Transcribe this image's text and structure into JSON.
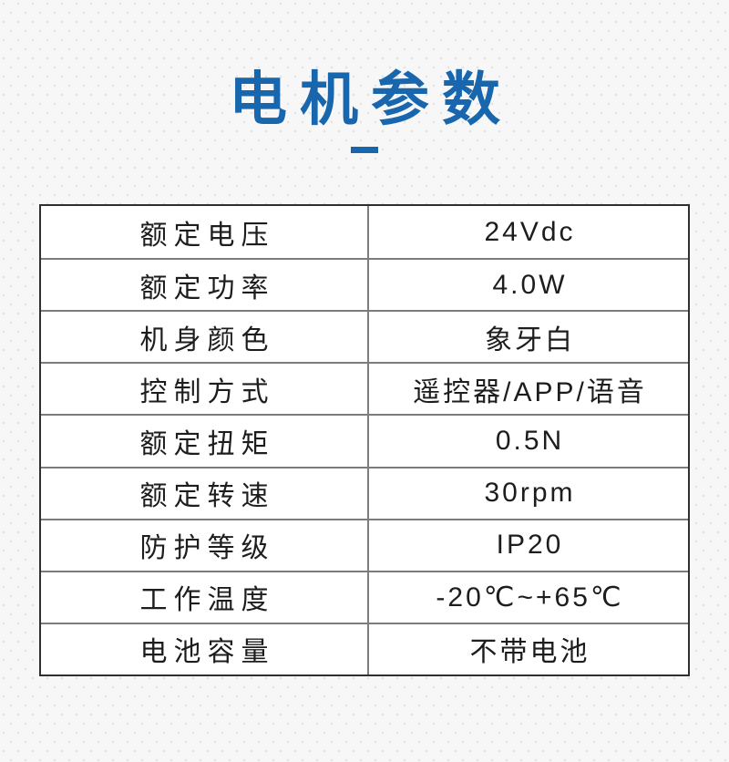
{
  "page": {
    "title": {
      "text": "电机参数",
      "accent_color": "#1766ae"
    },
    "background": {
      "base_color": "#f7f7f8",
      "dot_color": "#e4e4e6"
    }
  },
  "table": {
    "outer_border_color": "#2f2f2f",
    "inner_border_color": "#7c7c7c",
    "text_color": "#1d1d1d",
    "rows": [
      {
        "label": "额定电压",
        "value": "24Vdc"
      },
      {
        "label": "额定功率",
        "value": "4.0W"
      },
      {
        "label": "机身颜色",
        "value": "象牙白"
      },
      {
        "label": "控制方式",
        "value": "遥控器/APP/语音"
      },
      {
        "label": "额定扭矩",
        "value": "0.5N"
      },
      {
        "label": "额定转速",
        "value": "30rpm"
      },
      {
        "label": "防护等级",
        "value": "IP20"
      },
      {
        "label": "工作温度",
        "value": "-20℃~+65℃"
      },
      {
        "label": "电池容量",
        "value": "不带电池"
      }
    ]
  }
}
